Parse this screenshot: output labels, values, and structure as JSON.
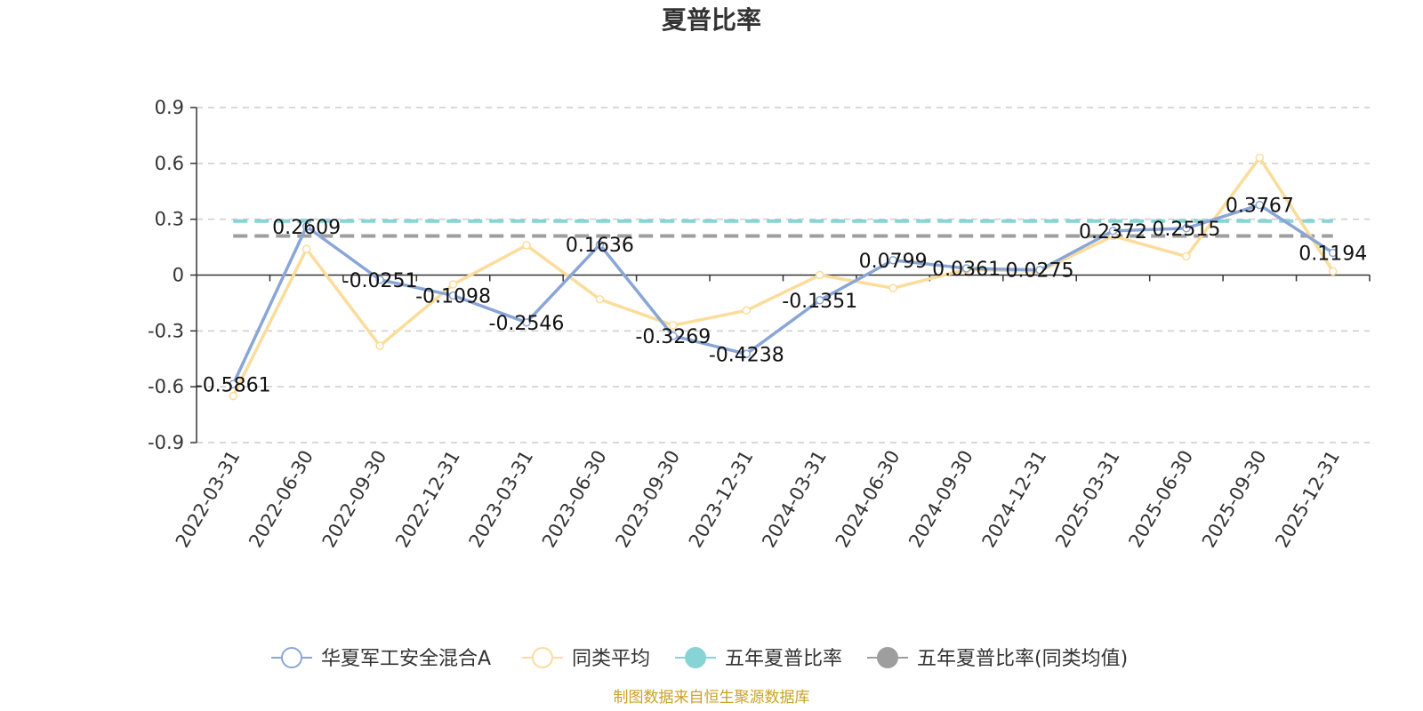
{
  "chart_data": {
    "type": "line",
    "title": "夏普比率",
    "source": "制图数据来自恒生聚源数据库",
    "categories": [
      "2022-03-31",
      "2022-06-30",
      "2022-09-30",
      "2022-12-31",
      "2023-03-31",
      "2023-06-30",
      "2023-09-30",
      "2023-12-31",
      "2024-03-31",
      "2024-06-30",
      "2024-09-30",
      "2024-12-31",
      "2025-03-31",
      "2025-06-30",
      "2025-09-30",
      "2025-12-31"
    ],
    "y_ticks": [
      "0.9",
      "0.6",
      "0.3",
      "0",
      "-0.3",
      "-0.6",
      "-0.9"
    ],
    "ylim": [
      -0.9,
      0.9
    ],
    "grid": true,
    "legend_position": "bottom",
    "series": [
      {
        "name": "华夏军工安全混合A",
        "color": "#8aa6d6",
        "values": [
          -0.5861,
          0.2609,
          -0.0251,
          -0.1098,
          -0.2546,
          0.1636,
          -0.3269,
          -0.4238,
          -0.1351,
          0.0799,
          0.0361,
          0.0275,
          0.2372,
          0.2515,
          0.3767,
          0.1194
        ],
        "labels": [
          "-0.5861",
          "0.2609",
          "-0.0251",
          "-0.1098",
          "-0.2546",
          "0.1636",
          "-0.3269",
          "-0.4238",
          "-0.1351",
          "0.0799",
          "0.0361",
          "0.0275",
          "0.2372",
          "0.2515",
          "0.3767",
          "0.1194"
        ]
      },
      {
        "name": "同类平均",
        "color": "#fbdc9a",
        "values": [
          -0.65,
          0.14,
          -0.38,
          -0.05,
          0.16,
          -0.13,
          -0.27,
          -0.19,
          0.0,
          -0.07,
          0.03,
          0.02,
          0.21,
          0.1,
          0.63,
          0.02
        ]
      },
      {
        "name": "五年夏普比率",
        "color": "#86d4d5",
        "constant": 0.29
      },
      {
        "name": "五年夏普比率(同类均值)",
        "color": "#9e9e9e",
        "constant": 0.21
      }
    ]
  }
}
